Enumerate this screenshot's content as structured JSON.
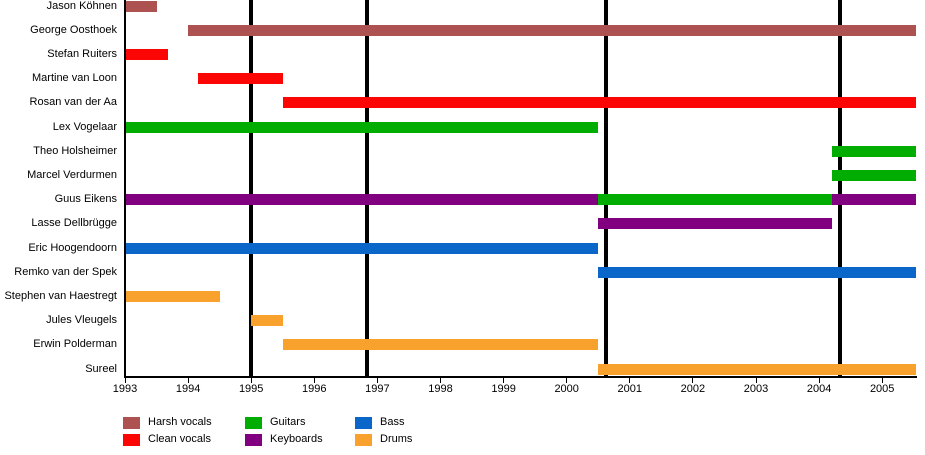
{
  "chart_data": {
    "type": "bar",
    "subtype": "timeline-gantt",
    "title": "",
    "xlabel": "",
    "ylabel": "",
    "x_axis": {
      "min": 1993,
      "max": 2005.54,
      "ticks": [
        1993,
        1994,
        1995,
        1996,
        1997,
        1998,
        1999,
        2000,
        2001,
        2002,
        2003,
        2004,
        2005
      ]
    },
    "grid": false,
    "event_lines": {
      "color": "#000000",
      "years": [
        1995.0,
        1996.83,
        2000.63,
        2004.33
      ]
    },
    "roles": [
      {
        "name": "Harsh vocals",
        "color": "#AD5151"
      },
      {
        "name": "Clean vocals",
        "color": "#FB0505"
      },
      {
        "name": "Guitars",
        "color": "#00AD00"
      },
      {
        "name": "Keyboards",
        "color": "#800080"
      },
      {
        "name": "Bass",
        "color": "#0A66C8"
      },
      {
        "name": "Drums",
        "color": "#F9A12D"
      }
    ],
    "members": [
      {
        "name": "Jason Köhnen",
        "segments": [
          {
            "role": "Harsh vocals",
            "start": 1993.0,
            "end": 1993.5
          }
        ]
      },
      {
        "name": "George Oosthoek",
        "segments": [
          {
            "role": "Harsh vocals",
            "start": 1994.0,
            "end": 2005.54
          }
        ]
      },
      {
        "name": "Stefan Ruiters",
        "segments": [
          {
            "role": "Clean vocals",
            "start": 1993.0,
            "end": 1993.68
          }
        ]
      },
      {
        "name": "Martine van Loon",
        "segments": [
          {
            "role": "Clean vocals",
            "start": 1994.15,
            "end": 1995.5
          }
        ]
      },
      {
        "name": "Rosan van der Aa",
        "segments": [
          {
            "role": "Clean vocals",
            "start": 1995.5,
            "end": 2005.54
          }
        ]
      },
      {
        "name": "Lex Vogelaar",
        "segments": [
          {
            "role": "Guitars",
            "start": 1993.0,
            "end": 2000.5
          }
        ]
      },
      {
        "name": "Theo Holsheimer",
        "segments": [
          {
            "role": "Guitars",
            "start": 2004.2,
            "end": 2005.54
          }
        ]
      },
      {
        "name": "Marcel Verdurmen",
        "segments": [
          {
            "role": "Guitars",
            "start": 2004.2,
            "end": 2005.54
          }
        ]
      },
      {
        "name": "Guus Eikens",
        "segments": [
          {
            "role": "Keyboards",
            "start": 1993.0,
            "end": 2000.5
          },
          {
            "role": "Guitars",
            "start": 2000.5,
            "end": 2004.2
          },
          {
            "role": "Keyboards",
            "start": 2004.2,
            "end": 2005.54
          }
        ]
      },
      {
        "name": "Lasse Dellbrügge",
        "segments": [
          {
            "role": "Keyboards",
            "start": 2000.5,
            "end": 2004.2
          }
        ]
      },
      {
        "name": "Eric Hoogendoorn",
        "segments": [
          {
            "role": "Bass",
            "start": 1993.0,
            "end": 2000.5
          }
        ]
      },
      {
        "name": "Remko van der Spek",
        "segments": [
          {
            "role": "Bass",
            "start": 2000.5,
            "end": 2005.54
          }
        ]
      },
      {
        "name": "Stephen van Haestregt",
        "segments": [
          {
            "role": "Drums",
            "start": 1993.0,
            "end": 1994.5
          }
        ]
      },
      {
        "name": "Jules Vleugels",
        "segments": [
          {
            "role": "Drums",
            "start": 1995.0,
            "end": 1995.5
          }
        ]
      },
      {
        "name": "Erwin Polderman",
        "segments": [
          {
            "role": "Drums",
            "start": 1995.5,
            "end": 2000.5
          }
        ]
      },
      {
        "name": "Sureel",
        "segments": [
          {
            "role": "Drums",
            "start": 2000.5,
            "end": 2005.54
          }
        ]
      }
    ],
    "legend": {
      "position": "bottom",
      "entries": [
        "Harsh vocals",
        "Clean vocals",
        "Guitars",
        "Keyboards",
        "Bass",
        "Drums"
      ]
    }
  }
}
